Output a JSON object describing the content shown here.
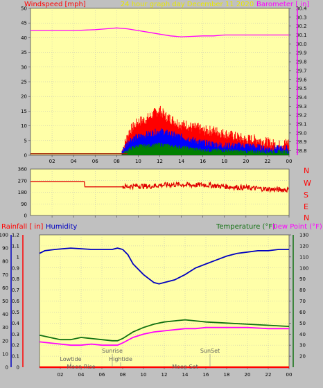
{
  "header": {
    "windspeed_label": "Windspeed [mph]",
    "title": "24 hour graph day   December 11 2020",
    "barometer_label": "Barometer [ in]"
  },
  "labels": {
    "rainfall": "Rainfall [ in]",
    "humidity": "Humidity",
    "temperature": "Temperature (°F)",
    "dew_point": "Dew Point (°F)"
  },
  "colors": {
    "background": "#c0c0c0",
    "plot": "#ffffa8",
    "grid": "#b8b8b8",
    "wind_gust": "#ff0000",
    "wind_avg": "#0000ff",
    "wind_low": "#008000",
    "baseline": "#a02000",
    "barometer": "#ff00ff",
    "direction": "#e00000",
    "rain": "#ff0000",
    "humidity": "#0000c0",
    "temperature": "#107010",
    "dewpoint": "#ff00ff",
    "title_text": "#e8e800"
  },
  "x_ticks": [
    "02",
    "04",
    "06",
    "08",
    "10",
    "12",
    "14",
    "16",
    "18",
    "20",
    "22",
    "00"
  ],
  "events": [
    {
      "label": "Lowtide",
      "time": 3.0,
      "row": 0
    },
    {
      "label": "Moon Rise",
      "time": 4.0,
      "row": 1
    },
    {
      "label": "Sunrise",
      "time": 7.0,
      "row": -1
    },
    {
      "label": "Hightide",
      "time": 7.8,
      "row": 0
    },
    {
      "label": "SunSet",
      "time": 16.4,
      "row": -1
    },
    {
      "label": "Moon Set",
      "time": 14.0,
      "row": 1
    }
  ],
  "direction_letters": [
    "N",
    "W",
    "S",
    "E",
    "N"
  ],
  "chart_data": [
    {
      "type": "line",
      "name": "wind",
      "x_unit": "hour",
      "xlim": [
        0,
        24
      ],
      "left_axis": {
        "title": "Windspeed [mph]",
        "ylim": [
          0,
          50
        ],
        "ticks": [
          0,
          5,
          10,
          15,
          20,
          25,
          30,
          35,
          40,
          45,
          50
        ]
      },
      "right_axis": {
        "title": "Barometer [ in]",
        "ylim": [
          28.75,
          30.4
        ],
        "ticks": [
          28.8,
          28.9,
          29.0,
          29.1,
          29.2,
          29.3,
          29.4,
          29.5,
          29.6,
          29.7,
          29.8,
          29.9,
          30.0,
          30.1,
          30.2,
          30.3,
          30.4
        ]
      },
      "series": [
        {
          "role": "barometer",
          "axis": "right",
          "x": [
            0,
            2,
            4,
            6,
            7,
            8,
            9,
            10,
            11,
            12,
            13,
            14,
            16,
            17,
            18,
            20,
            22,
            24
          ],
          "y": [
            30.15,
            30.15,
            30.15,
            30.16,
            30.17,
            30.18,
            30.17,
            30.15,
            30.13,
            30.11,
            30.09,
            30.08,
            30.09,
            30.09,
            30.1,
            30.1,
            30.1,
            30.1
          ]
        },
        {
          "role": "gust",
          "axis": "left",
          "x": [
            0,
            8.5,
            9.2,
            10.0,
            10.8,
            11.5,
            12.0,
            12.5,
            13.0,
            13.5,
            14.0,
            14.5,
            15.0,
            15.5,
            16.0,
            17.0,
            18.0,
            19.0,
            20.0,
            21.0,
            22.0,
            23.0,
            24.0
          ],
          "y": [
            0,
            1,
            8,
            11,
            12,
            14,
            15,
            13,
            12,
            11,
            10,
            10,
            9,
            9,
            8,
            8,
            7,
            6,
            5,
            5,
            4,
            3,
            4
          ]
        },
        {
          "role": "average",
          "axis": "left",
          "x": [
            0,
            8.5,
            9.2,
            10.0,
            11.0,
            12.0,
            13.0,
            14.0,
            15.0,
            16.0,
            18.0,
            20.0,
            22.0,
            24.0
          ],
          "y": [
            0,
            1,
            5,
            6,
            7,
            8,
            7,
            6,
            5,
            4,
            3,
            3,
            2,
            2
          ]
        },
        {
          "role": "low",
          "axis": "left",
          "x": [
            0,
            8.5,
            9.2,
            10.0,
            11.0,
            12.0,
            13.0,
            14.0,
            15.0,
            16.0,
            18.0,
            20.0,
            22.0,
            24.0
          ],
          "y": [
            0,
            0,
            2,
            3,
            3,
            3.5,
            3,
            2.5,
            2,
            1.5,
            1.5,
            1,
            1,
            1
          ]
        },
        {
          "role": "baseline",
          "axis": "left",
          "x": [
            0,
            9.0
          ],
          "y": [
            0.5,
            0.5
          ]
        }
      ]
    },
    {
      "type": "line",
      "name": "direction",
      "x_unit": "hour",
      "xlim": [
        0,
        24
      ],
      "ylim": [
        0,
        360
      ],
      "ticks": [
        0,
        90,
        180,
        270,
        360
      ],
      "series": [
        {
          "role": "direction",
          "x": [
            0,
            5.0,
            5.05,
            8.5,
            9,
            10,
            11,
            12,
            13,
            14,
            15,
            16,
            17,
            18,
            19,
            20,
            21,
            22,
            23,
            24
          ],
          "y": [
            262,
            262,
            222,
            222,
            225,
            230,
            225,
            235,
            238,
            240,
            235,
            238,
            232,
            225,
            220,
            215,
            210,
            205,
            200,
            200
          ]
        }
      ]
    },
    {
      "type": "line",
      "name": "temperature-humidity",
      "x_unit": "hour",
      "xlim": [
        0,
        24
      ],
      "left_axis": {
        "title": "Rainfall [ in]",
        "ylim": [
          0,
          1.2
        ],
        "ticks": [
          0,
          0.1,
          0.2,
          0.3,
          0.4,
          0.5,
          0.6,
          0.7,
          0.8,
          0.9,
          1.0,
          1.1,
          1.2
        ]
      },
      "left_axis_2": {
        "title": "Humidity",
        "ylim": [
          0,
          100
        ],
        "ticks": [
          0,
          10,
          20,
          30,
          40,
          50,
          60,
          70,
          80,
          90,
          100
        ]
      },
      "right_axis": {
        "title": "Temperature (°F)",
        "ylim": [
          10,
          130
        ],
        "ticks": [
          20,
          30,
          40,
          50,
          60,
          70,
          80,
          90,
          100,
          110,
          120,
          130
        ]
      },
      "series": [
        {
          "role": "humidity",
          "axis": "left_2",
          "x": [
            0,
            0.5,
            1.5,
            3,
            5,
            6,
            7,
            7.5,
            8,
            8.5,
            9,
            10,
            11,
            11.5,
            12,
            13,
            14,
            15,
            16,
            17,
            18,
            19,
            20,
            21,
            22,
            23,
            24
          ],
          "y": [
            86,
            88,
            89,
            90,
            89,
            89,
            89,
            90,
            89,
            85,
            78,
            70,
            64,
            63,
            64,
            66,
            70,
            75,
            78,
            81,
            84,
            86,
            87,
            88,
            88,
            89,
            89
          ]
        },
        {
          "role": "temperature",
          "axis": "right",
          "x": [
            0,
            1,
            2,
            3,
            4,
            5,
            6,
            7,
            7.5,
            8,
            9,
            10,
            11,
            12,
            13,
            14,
            15,
            16,
            18,
            20,
            22,
            24
          ],
          "y": [
            39,
            37,
            35,
            35,
            37,
            36,
            35,
            34,
            34,
            36,
            42,
            46,
            49,
            51,
            52,
            53,
            52,
            51,
            50,
            49,
            48,
            47
          ]
        },
        {
          "role": "dewpoint",
          "axis": "right",
          "x": [
            0,
            1,
            2,
            3,
            4,
            5,
            6,
            7,
            7.5,
            8,
            9,
            10,
            11,
            12,
            13,
            14,
            15,
            16,
            18,
            20,
            22,
            24
          ],
          "y": [
            33,
            32,
            31,
            30,
            30,
            31,
            30,
            30,
            30,
            32,
            37,
            40,
            42,
            43,
            44,
            45,
            45,
            46,
            46,
            46,
            45,
            45
          ]
        },
        {
          "role": "rain",
          "axis": "left",
          "x": [
            0,
            24
          ],
          "y": [
            0,
            0
          ]
        }
      ]
    }
  ]
}
